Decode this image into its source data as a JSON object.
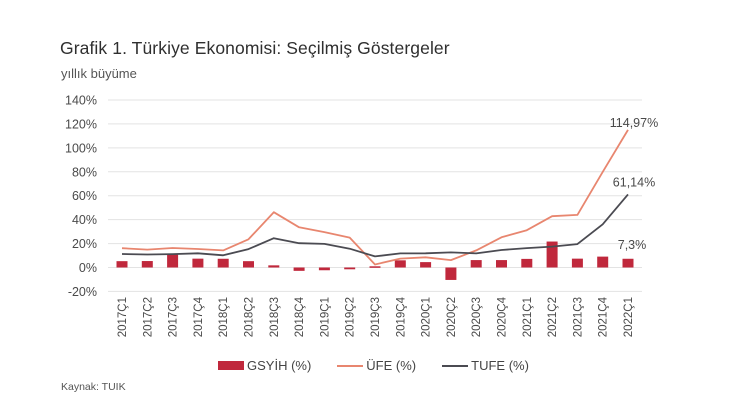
{
  "header": {
    "title": "Grafik 1. Türkiye Ekonomisi: Seçilmiş Göstergeler",
    "subtitle": "yıllık büyüme"
  },
  "footer": {
    "source": "Kaynak: TUIK"
  },
  "colors": {
    "gsyih": "#c0283c",
    "ufe": "#e8866f",
    "tufe": "#4b4b52",
    "grid": "#e3e3e3"
  },
  "legend": [
    {
      "label": "GSYİH (%)",
      "kind": "bar",
      "color": "#c0283c"
    },
    {
      "label": "ÜFE (%)",
      "kind": "line",
      "color": "#e8866f"
    },
    {
      "label": "TUFE (%)",
      "kind": "line",
      "color": "#4b4b52"
    }
  ],
  "annotations": [
    {
      "series": "ÜFE (%)",
      "text": "114,97%"
    },
    {
      "series": "TUFE (%)",
      "text": "61,14%"
    },
    {
      "series": "GSYİH (%)",
      "text": "7,3%"
    }
  ],
  "chart_data": {
    "type": "bar",
    "combo": "bar+line",
    "title": "Grafik 1. Türkiye Ekonomisi: Seçilmiş Göstergeler",
    "subtitle": "yıllık büyüme",
    "xlabel": "",
    "ylabel": "yıllık büyüme",
    "ylim": [
      -20,
      140
    ],
    "yticks": [
      -20,
      0,
      20,
      40,
      60,
      80,
      100,
      120,
      140
    ],
    "ytick_labels": [
      "-20%",
      "0%",
      "20%",
      "40%",
      "60%",
      "80%",
      "100%",
      "120%",
      "140%"
    ],
    "grid": true,
    "legend_position": "bottom",
    "categories": [
      "2017Ç1",
      "2017Ç2",
      "2017Ç3",
      "2017Ç4",
      "2018Ç1",
      "2018Ç2",
      "2018Ç3",
      "2018Ç4",
      "2019Ç1",
      "2019Ç2",
      "2019Ç3",
      "2019Ç4",
      "2020Ç1",
      "2020Ç2",
      "2020Ç3",
      "2020Ç4",
      "2021Ç1",
      "2021Ç2",
      "2021Ç3",
      "2021Ç4",
      "2022Ç1"
    ],
    "series": [
      {
        "name": "GSYİH (%)",
        "type": "bar",
        "color": "#c0283c",
        "values": [
          5.3,
          5.4,
          11.1,
          7.4,
          7.3,
          5.3,
          1.8,
          -2.8,
          -2.3,
          -1.5,
          1.0,
          6.0,
          4.5,
          -10.4,
          6.2,
          6.2,
          7.2,
          21.7,
          7.4,
          9.1,
          7.3
        ]
      },
      {
        "name": "ÜFE (%)",
        "type": "line",
        "color": "#e8866f",
        "values": [
          16.1,
          15.0,
          16.3,
          15.5,
          14.3,
          23.6,
          46.2,
          33.6,
          29.6,
          25.0,
          2.5,
          7.4,
          8.5,
          6.2,
          14.3,
          25.2,
          31.2,
          42.9,
          44.0,
          79.9,
          114.97
        ]
      },
      {
        "name": "TUFE (%)",
        "type": "line",
        "color": "#4b4b52",
        "values": [
          11.3,
          10.9,
          11.2,
          11.9,
          10.2,
          15.4,
          24.5,
          20.3,
          19.7,
          15.7,
          9.3,
          11.8,
          11.9,
          12.6,
          11.8,
          14.6,
          16.2,
          17.5,
          19.6,
          36.1,
          61.14
        ]
      }
    ],
    "annotations": [
      "114,97%",
      "61,14%",
      "7,3%"
    ],
    "source": "Kaynak: TUIK"
  }
}
